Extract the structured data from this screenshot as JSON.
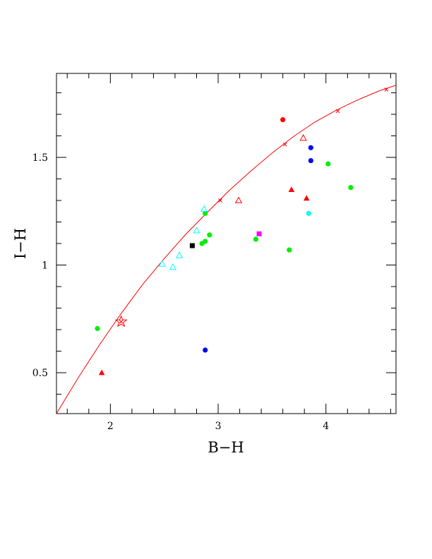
{
  "chart_data": {
    "type": "scatter",
    "xlabel": "B−H",
    "ylabel": "I−H",
    "xlim": [
      1.5,
      4.65
    ],
    "ylim": [
      0.31,
      1.89
    ],
    "x_ticks": [
      2,
      3,
      4
    ],
    "x_tick_labels": [
      "2",
      "3",
      "4"
    ],
    "y_ticks": [
      0.5,
      1,
      1.5
    ],
    "y_tick_labels": [
      "0.5",
      "1",
      "1.5"
    ],
    "grid": false,
    "colors": {
      "red": "#ff0000",
      "blue": "#0000ff",
      "green": "#00ee00",
      "cyan": "#00ffff",
      "black": "#000000",
      "magenta": "#ff00ff"
    },
    "curve": {
      "color": "#ff0000",
      "x": [
        1.5,
        1.7,
        1.9,
        2.1,
        2.3,
        2.5,
        2.7,
        2.9,
        3.1,
        3.3,
        3.5,
        3.7,
        3.9,
        4.1,
        4.3,
        4.5,
        4.65
      ],
      "y": [
        0.31,
        0.475,
        0.63,
        0.775,
        0.91,
        1.03,
        1.143,
        1.245,
        1.345,
        1.435,
        1.52,
        1.597,
        1.665,
        1.72,
        1.768,
        1.81,
        1.835
      ]
    },
    "curve_markers": {
      "color": "#ff0000",
      "x": [
        2.1,
        3.02,
        3.62,
        4.11,
        4.56
      ],
      "y": [
        0.737,
        1.3,
        1.56,
        1.715,
        1.815
      ]
    },
    "series": [
      {
        "marker": "circle",
        "color": "red",
        "x": [
          3.6
        ],
        "y": [
          1.675
        ]
      },
      {
        "marker": "circle",
        "color": "blue",
        "x": [
          3.86,
          3.86,
          2.88
        ],
        "y": [
          1.545,
          1.485,
          0.605
        ]
      },
      {
        "marker": "circle",
        "color": "green",
        "x": [
          1.88,
          2.88,
          2.92,
          2.85,
          2.88,
          3.35,
          3.66,
          4.02,
          4.23
        ],
        "y": [
          0.705,
          1.24,
          1.14,
          1.1,
          1.11,
          1.12,
          1.07,
          1.47,
          1.36
        ]
      },
      {
        "marker": "circle",
        "color": "cyan",
        "x": [
          3.84
        ],
        "y": [
          1.24
        ]
      },
      {
        "marker": "filled-triangle",
        "color": "red",
        "x": [
          1.92,
          3.68,
          3.82
        ],
        "y": [
          0.5,
          1.35,
          1.31
        ]
      },
      {
        "marker": "open-triangle",
        "color": "red",
        "x": [
          3.19,
          3.79
        ],
        "y": [
          1.3,
          1.59
        ]
      },
      {
        "marker": "open-triangle",
        "color": "cyan",
        "x": [
          2.48,
          2.58,
          2.64,
          2.8,
          2.87
        ],
        "y": [
          1.005,
          0.99,
          1.045,
          1.16,
          1.26
        ]
      },
      {
        "marker": "square",
        "color": "black",
        "x": [
          2.76
        ],
        "y": [
          1.09
        ]
      },
      {
        "marker": "square",
        "color": "magenta",
        "x": [
          3.38
        ],
        "y": [
          1.145
        ]
      },
      {
        "marker": "open-star",
        "color": "red",
        "x": [
          2.1
        ],
        "y": [
          0.737
        ]
      }
    ]
  }
}
